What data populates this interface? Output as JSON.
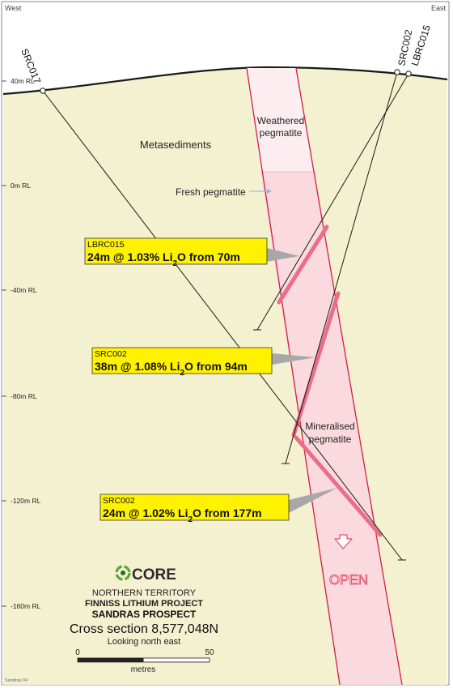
{
  "directions": {
    "west": "West",
    "east": "East"
  },
  "rl_labels": [
    "40m RL",
    "0m RL",
    "-40m RL",
    "-80m RL",
    "-120m RL",
    "-160m RL"
  ],
  "holes": {
    "src017": "SRC017",
    "src002": "SRC002",
    "lbrc015": "LBRC015"
  },
  "units": {
    "weathered": [
      "Weathered",
      "pegmatite"
    ],
    "fresh": "Fresh pegmatite",
    "metasediments": "Metasediments",
    "mineralised": [
      "Mineralised",
      "pegmatite"
    ],
    "open": "OPEN"
  },
  "callouts": [
    {
      "hole": "LBRC015",
      "interval": "24m @ 1.03% Li",
      "sub": "2",
      "tail": "O from 70m"
    },
    {
      "hole": "SRC002",
      "interval": "38m @ 1.08% Li",
      "sub": "2",
      "tail": "O from 94m"
    },
    {
      "hole": "SRC002",
      "interval": "24m @ 1.02% Li",
      "sub": "2",
      "tail": "O from 177m"
    }
  ],
  "title_block": {
    "logo_text": "CORE",
    "region": "NORTHERN TERRITORY",
    "project": "FINNISS LITHIUM PROJECT",
    "prospect": "SANDRAS PROSPECT",
    "section": "Cross section 8,577,048N",
    "view": "Looking north east"
  },
  "scale_bar": {
    "min": "0",
    "max": "50",
    "unit": "metres"
  },
  "figure_ref": "Sandras 04",
  "colors": {
    "background": "#f4f1d0",
    "pegmatite_fresh": "#fadadf",
    "pegmatite_weathered": "#fcedf0",
    "pegmatite_outline": "#d31e47",
    "mineralised": "#ec6d8a",
    "callout": "#fff200",
    "logo_green": "#5aa832"
  }
}
